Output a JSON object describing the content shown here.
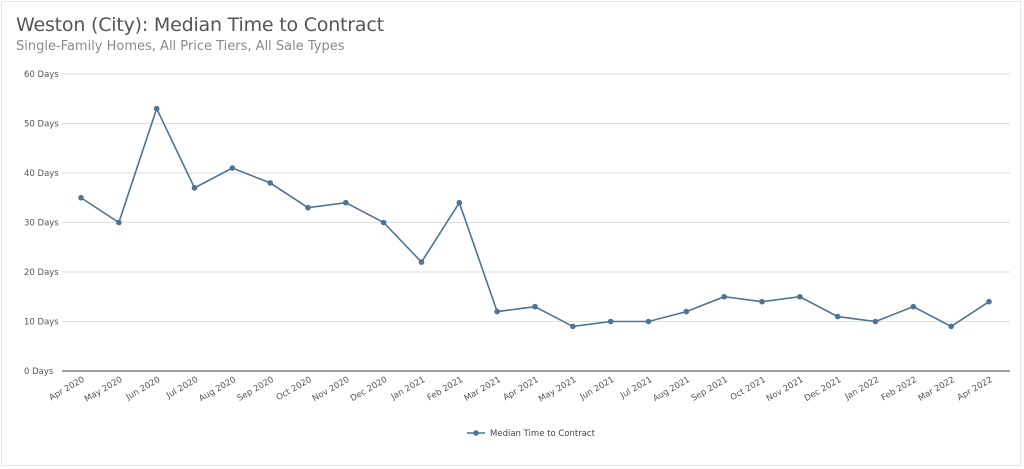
{
  "chart_data": {
    "type": "line",
    "title": "Weston (City): Median Time to Contract",
    "subtitle": "Single-Family Homes, All Price Tiers, All Sale Types",
    "categories": [
      "Apr 2020",
      "May 2020",
      "Jun 2020",
      "Jul 2020",
      "Aug 2020",
      "Sep 2020",
      "Oct 2020",
      "Nov 2020",
      "Dec 2020",
      "Jan 2021",
      "Feb 2021",
      "Mar 2021",
      "Apr 2021",
      "May 2021",
      "Jun 2021",
      "Jul 2021",
      "Aug 2021",
      "Sep 2021",
      "Oct 2021",
      "Nov 2021",
      "Dec 2021",
      "Jan 2022",
      "Feb 2022",
      "Mar 2022",
      "Apr 2022"
    ],
    "series": [
      {
        "name": "Median Time to Contract",
        "color": "#4e7394",
        "values": [
          35,
          30,
          53,
          37,
          41,
          38,
          33,
          34,
          30,
          22,
          34,
          12,
          13,
          9,
          10,
          10,
          12,
          15,
          14,
          15,
          11,
          10,
          13,
          9,
          14
        ]
      }
    ],
    "ylim": [
      0,
      60
    ],
    "yticks": [
      0,
      10,
      20,
      30,
      40,
      50,
      60
    ],
    "ytick_labels": [
      "0 Days",
      "10 Days",
      "20 Days",
      "30 Days",
      "40 Days",
      "50 Days",
      "60 Days"
    ],
    "grid": true,
    "legend": "bottom-center",
    "xlabel": "",
    "ylabel": ""
  }
}
